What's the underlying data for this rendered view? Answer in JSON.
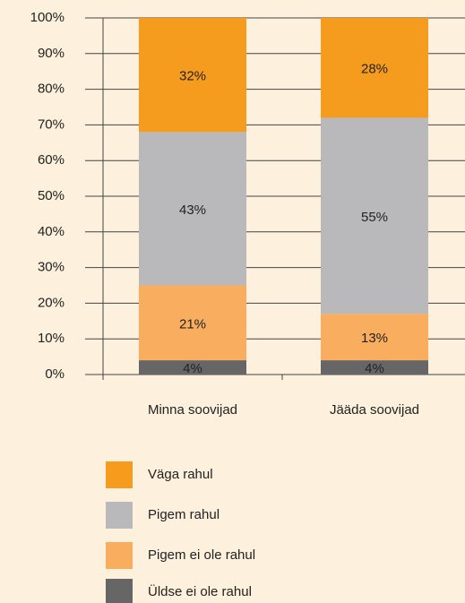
{
  "chart_data": {
    "type": "stacked_bar",
    "categories": [
      "Minna soovijad",
      "Jääda soovijad"
    ],
    "series": [
      {
        "name": "Üldse ei ole rahul",
        "color": "#666666",
        "values": [
          4,
          4
        ],
        "value_labels": [
          "4%",
          "4%"
        ]
      },
      {
        "name": "Pigem ei ole rahul",
        "color": "#f9ad5f",
        "values": [
          21,
          13
        ],
        "value_labels": [
          "21%",
          "13%"
        ]
      },
      {
        "name": "Pigem rahul",
        "color": "#b9b9bb",
        "values": [
          43,
          55
        ],
        "value_labels": [
          "43%",
          "55%"
        ]
      },
      {
        "name": "Väga rahul",
        "color": "#f59c1e",
        "values": [
          32,
          28
        ],
        "value_labels": [
          "32%",
          "28%"
        ]
      }
    ],
    "ylim": [
      0,
      100
    ],
    "yticks": [
      {
        "value": 0,
        "label": "0%"
      },
      {
        "value": 10,
        "label": "10%"
      },
      {
        "value": 20,
        "label": "20%"
      },
      {
        "value": 30,
        "label": "30%"
      },
      {
        "value": 40,
        "label": "40%"
      },
      {
        "value": 50,
        "label": "50%"
      },
      {
        "value": 60,
        "label": "60%"
      },
      {
        "value": 70,
        "label": "70%"
      },
      {
        "value": 80,
        "label": "80%"
      },
      {
        "value": 90,
        "label": "90%"
      },
      {
        "value": 100,
        "label": "100%"
      }
    ],
    "grid": true
  }
}
